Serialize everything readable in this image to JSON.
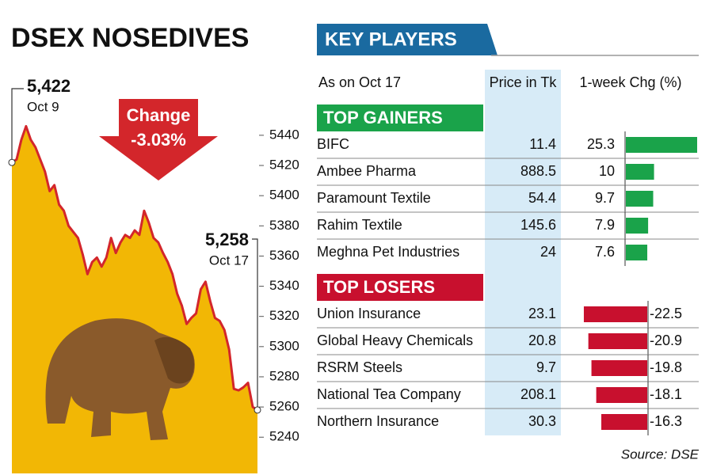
{
  "chart_data": [
    {
      "type": "line",
      "title": "DSEX NOSEDIVES",
      "callout": {
        "title": "Change",
        "text": "-3.03%"
      },
      "color": "#d3262b",
      "fill": "#f2b705",
      "values": [
        5422,
        5424,
        5437,
        5446,
        5437,
        5432,
        5424,
        5416,
        5403,
        5407,
        5394,
        5390,
        5380,
        5376,
        5372,
        5361,
        5348,
        5356,
        5359,
        5353,
        5359,
        5372,
        5362,
        5369,
        5374,
        5372,
        5377,
        5374,
        5390,
        5382,
        5372,
        5369,
        5362,
        5356,
        5348,
        5335,
        5327,
        5315,
        5319,
        5322,
        5338,
        5343,
        5330,
        5319,
        5317,
        5311,
        5298,
        5272,
        5271,
        5273,
        5276,
        5260,
        5258
      ],
      "annotations": [
        {
          "label": "5,422",
          "date": "Oct 9",
          "value": 5422
        },
        {
          "label": "5,258",
          "date": "Oct 17",
          "value": 5258
        }
      ],
      "ylim": [
        5216,
        5452
      ],
      "yticks": [
        5240,
        5260,
        5280,
        5300,
        5320,
        5340,
        5360,
        5380,
        5400,
        5420,
        5440
      ]
    },
    {
      "type": "table-bar",
      "title": "KEY PLAYERS",
      "columns": [
        "As on Oct 17",
        "Price in Tk",
        "1-week Chg (%)"
      ],
      "groups": [
        {
          "name": "TOP GAINERS",
          "color": "#1aa34a",
          "rows": [
            {
              "company": "BIFC",
              "price": 11.4,
              "change": 25.3
            },
            {
              "company": "Ambee Pharma",
              "price": 888.5,
              "change": 10
            },
            {
              "company": "Paramount Textile",
              "price": 54.4,
              "change": 9.7
            },
            {
              "company": "Rahim Textile",
              "price": 145.6,
              "change": 7.9
            },
            {
              "company": "Meghna Pet Industries",
              "price": 24,
              "change": 7.6
            }
          ]
        },
        {
          "name": "TOP LOSERS",
          "color": "#c8102e",
          "rows": [
            {
              "company": "Union Insurance",
              "price": 23.1,
              "change": -22.5
            },
            {
              "company": "Global Heavy Chemicals",
              "price": 20.8,
              "change": -20.9
            },
            {
              "company": "RSRM Steels",
              "price": 9.7,
              "change": -19.8
            },
            {
              "company": "National Tea Company",
              "price": 208.1,
              "change": -18.1
            },
            {
              "company": "Northern Insurance",
              "price": 30.3,
              "change": -16.3
            }
          ]
        }
      ],
      "source": "Source: DSE"
    }
  ]
}
